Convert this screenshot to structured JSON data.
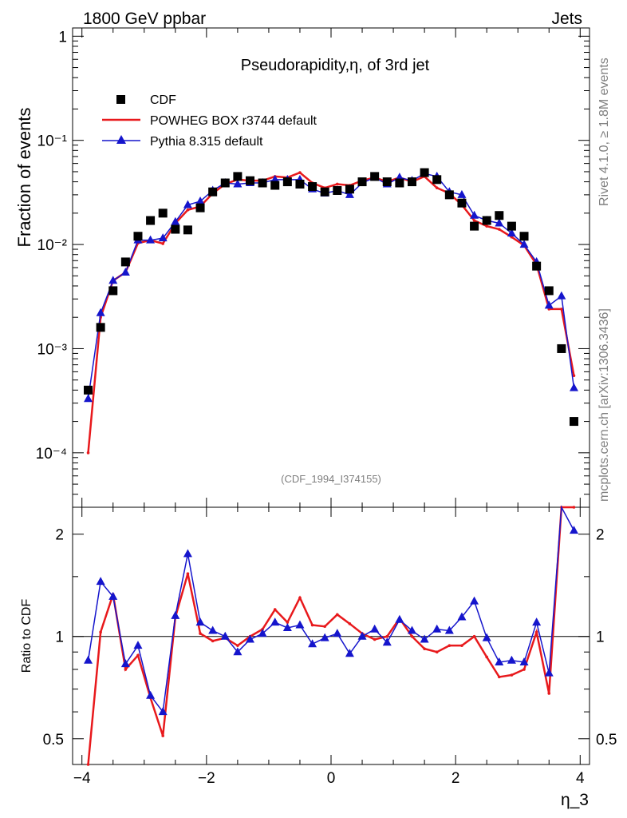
{
  "header": {
    "left_label": "1800 GeV ppbar",
    "right_label": "Jets",
    "side_label_top": "Rivet 4.1.0, ≥ 1.8M events",
    "side_label_bottom": "mcplots.cern.ch [arXiv:1306.3436]",
    "analysis_id": "(CDF_1994_I374155)"
  },
  "colors": {
    "cdf": "#000000",
    "powheg": "#e8191c",
    "pythia": "#1515cc"
  },
  "chart_data": [
    {
      "type": "scatter",
      "title": "Pseudorapidity,η, of 3rd jet",
      "ylabel": "Fraction of events",
      "xlabel": "η_3",
      "yscale": "log",
      "ylim": [
        3e-05,
        1.2
      ],
      "xlim": [
        -4.15,
        4.15
      ],
      "ytick_labels": [
        "10⁻⁴",
        "10⁻³",
        "10⁻²",
        "10⁻¹",
        "1"
      ],
      "ytick_values": [
        0.0001,
        0.001,
        0.01,
        0.1,
        1
      ],
      "legend": [
        "CDF",
        "POWHEG BOX r3744 default",
        "Pythia 8.315 default"
      ],
      "legend_position": "top-left",
      "x": [
        -3.9,
        -3.7,
        -3.5,
        -3.3,
        -3.1,
        -2.9,
        -2.7,
        -2.5,
        -2.3,
        -2.1,
        -1.9,
        -1.7,
        -1.5,
        -1.3,
        -1.1,
        -0.9,
        -0.7,
        -0.5,
        -0.3,
        -0.1,
        0.1,
        0.3,
        0.5,
        0.7,
        0.9,
        1.1,
        1.3,
        1.5,
        1.7,
        1.9,
        2.1,
        2.3,
        2.5,
        2.7,
        2.9,
        3.1,
        3.3,
        3.5,
        3.7,
        3.9
      ],
      "series": [
        {
          "name": "CDF",
          "values": [
            0.0004,
            0.0016,
            0.0036,
            0.0068,
            0.012,
            0.017,
            0.02,
            0.014,
            0.0138,
            0.0225,
            0.032,
            0.039,
            0.045,
            0.041,
            0.039,
            0.037,
            0.04,
            0.038,
            0.036,
            0.032,
            0.033,
            0.034,
            0.04,
            0.045,
            0.04,
            0.039,
            0.04,
            0.049,
            0.042,
            0.03,
            0.025,
            0.015,
            0.017,
            0.019,
            0.015,
            0.012,
            0.0062,
            0.0036,
            0.001,
            0.0002
          ]
        },
        {
          "name": "POWHEG BOX r3744 default",
          "values": [
            0.0001,
            0.002,
            0.0045,
            0.0054,
            0.0103,
            0.011,
            0.0102,
            0.016,
            0.0215,
            0.0232,
            0.031,
            0.038,
            0.042,
            0.041,
            0.041,
            0.045,
            0.044,
            0.049,
            0.039,
            0.035,
            0.038,
            0.037,
            0.041,
            0.044,
            0.04,
            0.044,
            0.04,
            0.045,
            0.035,
            0.031,
            0.024,
            0.017,
            0.015,
            0.014,
            0.0118,
            0.0098,
            0.0064,
            0.0024,
            0.0024,
            0.00055
          ]
        },
        {
          "name": "Pythia 8.315 default",
          "values": [
            0.00033,
            0.0022,
            0.0045,
            0.0054,
            0.011,
            0.011,
            0.0115,
            0.0165,
            0.024,
            0.026,
            0.033,
            0.039,
            0.038,
            0.039,
            0.039,
            0.042,
            0.042,
            0.042,
            0.034,
            0.031,
            0.033,
            0.03,
            0.039,
            0.044,
            0.038,
            0.044,
            0.041,
            0.048,
            0.045,
            0.032,
            0.03,
            0.019,
            0.017,
            0.016,
            0.0128,
            0.01,
            0.0068,
            0.0026,
            0.0032,
            0.00042
          ]
        }
      ]
    },
    {
      "type": "line",
      "ylabel": "Ratio to CDF",
      "xlabel": "η_3",
      "yscale": "log",
      "ylim": [
        0.42,
        2.4
      ],
      "xlim": [
        -4.15,
        4.15
      ],
      "ytick_labels": [
        "0.5",
        "1",
        "2"
      ],
      "ytick_values": [
        0.5,
        1,
        2
      ],
      "xtick_labels": [
        "−4",
        "−2",
        "0",
        "2",
        "4"
      ],
      "xtick_values": [
        -4,
        -2,
        0,
        2,
        4
      ],
      "reference_line": 1,
      "x": [
        -3.9,
        -3.7,
        -3.5,
        -3.3,
        -3.1,
        -2.9,
        -2.7,
        -2.5,
        -2.3,
        -2.1,
        -1.9,
        -1.7,
        -1.5,
        -1.3,
        -1.1,
        -0.9,
        -0.7,
        -0.5,
        -0.3,
        -0.1,
        0.1,
        0.3,
        0.5,
        0.7,
        0.9,
        1.1,
        1.3,
        1.5,
        1.7,
        1.9,
        2.1,
        2.3,
        2.5,
        2.7,
        2.9,
        3.1,
        3.3,
        3.5,
        3.7,
        3.9
      ],
      "series": [
        {
          "name": "POWHEG BOX r3744 default",
          "values": [
            0.4,
            1.03,
            1.33,
            0.8,
            0.88,
            0.66,
            0.51,
            1.14,
            1.53,
            1.02,
            0.97,
            0.99,
            0.94,
            1.0,
            1.05,
            1.2,
            1.1,
            1.3,
            1.08,
            1.07,
            1.16,
            1.09,
            1.02,
            0.98,
            1.0,
            1.13,
            1.0,
            0.92,
            0.9,
            0.94,
            0.94,
            1.0,
            0.87,
            0.76,
            0.77,
            0.8,
            1.03,
            0.68,
            2.4,
            2.4
          ]
        },
        {
          "name": "Pythia 8.315 default",
          "values": [
            0.85,
            1.45,
            1.31,
            0.83,
            0.94,
            0.67,
            0.6,
            1.15,
            1.75,
            1.1,
            1.04,
            1.0,
            0.9,
            0.98,
            1.02,
            1.1,
            1.06,
            1.08,
            0.95,
            0.99,
            1.02,
            0.89,
            1.0,
            1.05,
            0.96,
            1.12,
            1.04,
            0.98,
            1.05,
            1.04,
            1.14,
            1.27,
            0.99,
            0.84,
            0.85,
            0.84,
            1.1,
            0.78,
            2.4,
            2.05
          ]
        }
      ]
    }
  ]
}
